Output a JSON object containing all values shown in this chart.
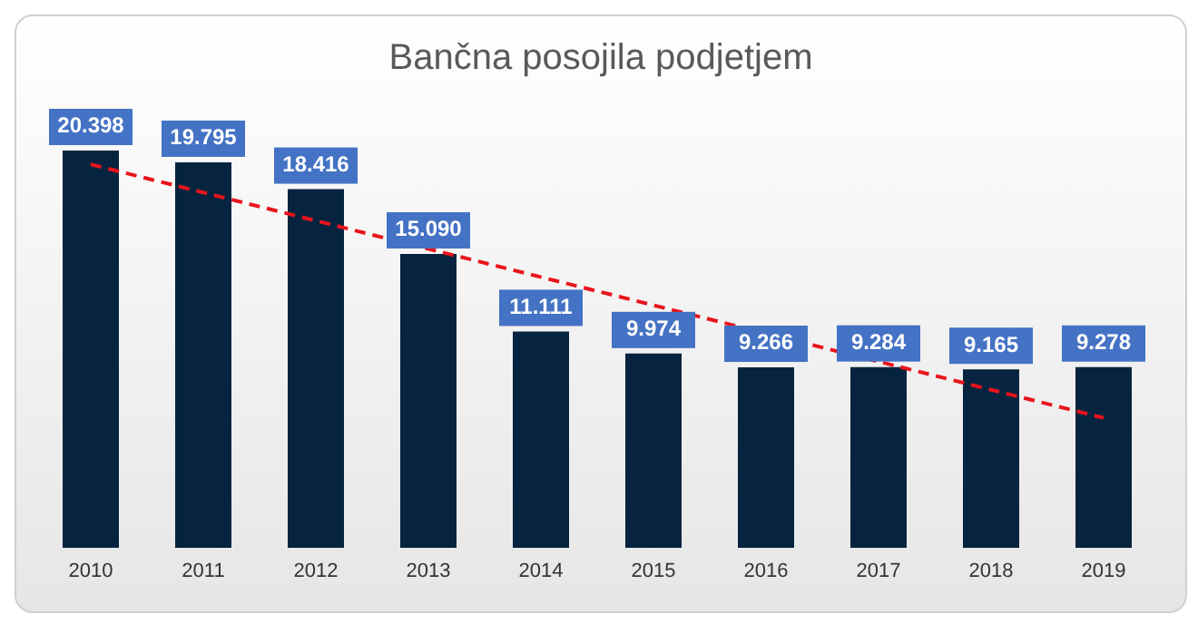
{
  "chart_data": {
    "type": "bar",
    "title": "Bančna posojila podjetjem",
    "categories": [
      "2010",
      "2011",
      "2012",
      "2013",
      "2014",
      "2015",
      "2016",
      "2017",
      "2018",
      "2019"
    ],
    "series": [
      {
        "color": "#062440",
        "values": [
          20.398,
          19.795,
          18.416,
          15.09,
          11.111,
          9.974,
          9.266,
          9.284,
          9.165,
          9.278
        ],
        "value_labels": [
          "20.398",
          "19.795",
          "18.416",
          "15.090",
          "11.111",
          "9.974",
          "9.266",
          "9.284",
          "9.165",
          "9.278"
        ]
      },
      {
        "type": "line",
        "color": "#e8141c",
        "line_style": "dashed",
        "marker": "none",
        "values": [
          19.69,
          null,
          null,
          null,
          null,
          null,
          null,
          null,
          null,
          6.67
        ]
      }
    ]
  }
}
